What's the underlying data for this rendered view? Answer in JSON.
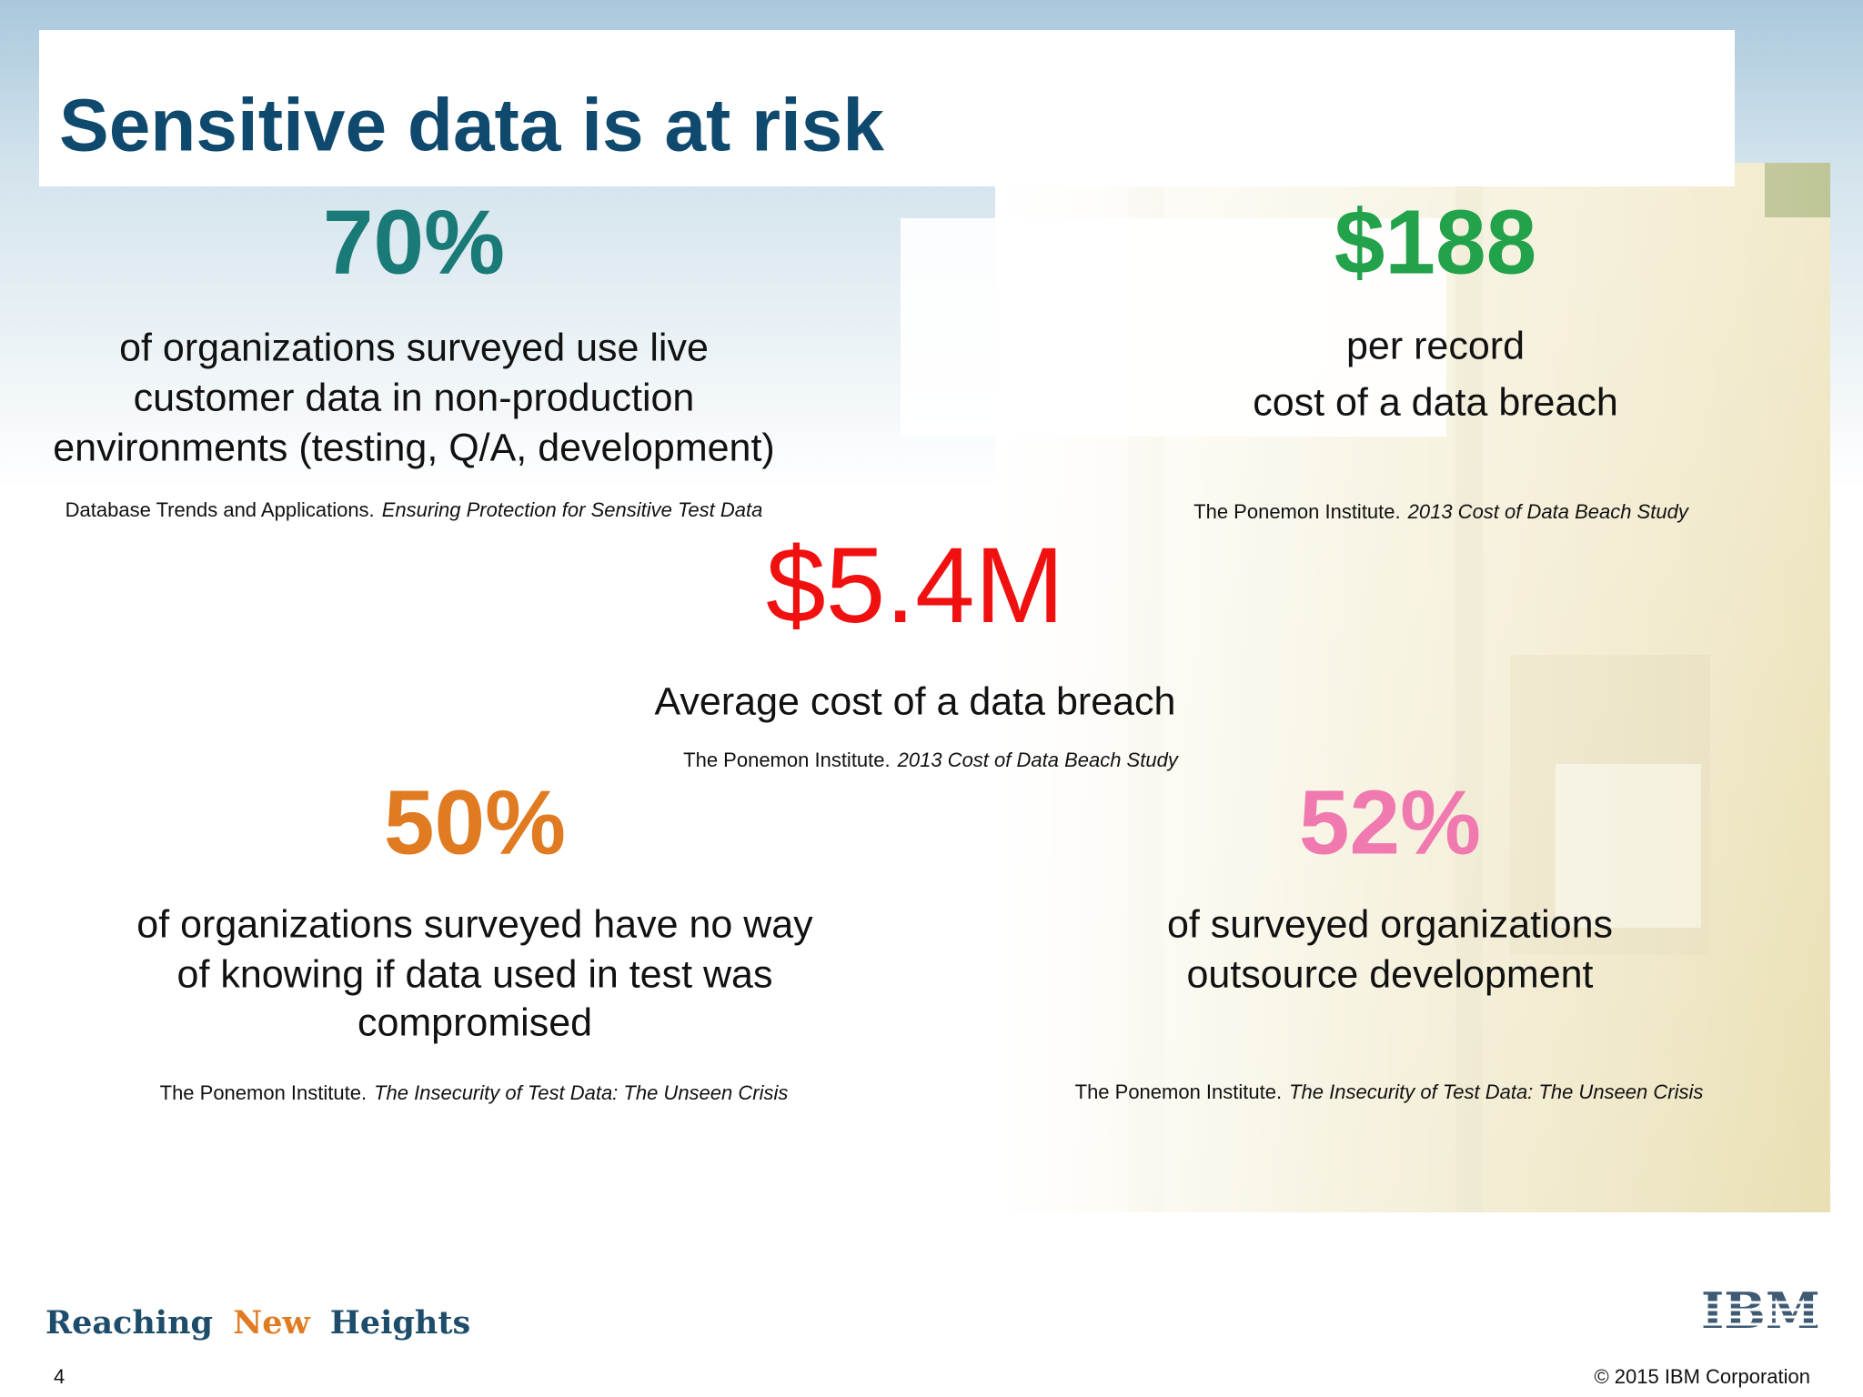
{
  "header": {
    "title": "Sensitive data is at risk"
  },
  "stats": [
    {
      "figure": "70%",
      "lines": [
        "of organizations surveyed use live",
        "customer data in non-production",
        "environments (testing, Q/A, development)"
      ],
      "source": "Database Trends and Applications.",
      "source_title": "Ensuring Protection for Sensitive Test Data"
    },
    {
      "figure": "$188",
      "lines": [
        "per record",
        "cost of a data breach"
      ],
      "source": "The Ponemon Institute.",
      "source_title": "2013 Cost of Data Beach Study"
    },
    {
      "figure": "$5.4M",
      "lines": [
        "Average cost of a data breach"
      ],
      "source": "The Ponemon Institute.",
      "source_title": "2013 Cost of Data Beach Study"
    },
    {
      "figure": "50%",
      "lines": [
        "of organizations surveyed have no way",
        "of knowing if data used in test was",
        "compromised"
      ],
      "source": "The Ponemon Institute.",
      "source_title": "The Insecurity of Test Data: The Unseen Crisis"
    },
    {
      "figure": "52%",
      "lines": [
        "of surveyed organizations",
        "outsource development"
      ],
      "source": "The Ponemon Institute.",
      "source_title": "The Insecurity of Test Data: The Unseen Crisis"
    }
  ],
  "footer": {
    "tagline": [
      "Reaching",
      "New",
      "Heights"
    ],
    "logo": "IBM",
    "page_number": "4",
    "copyright": "© 2015 IBM Corporation"
  }
}
